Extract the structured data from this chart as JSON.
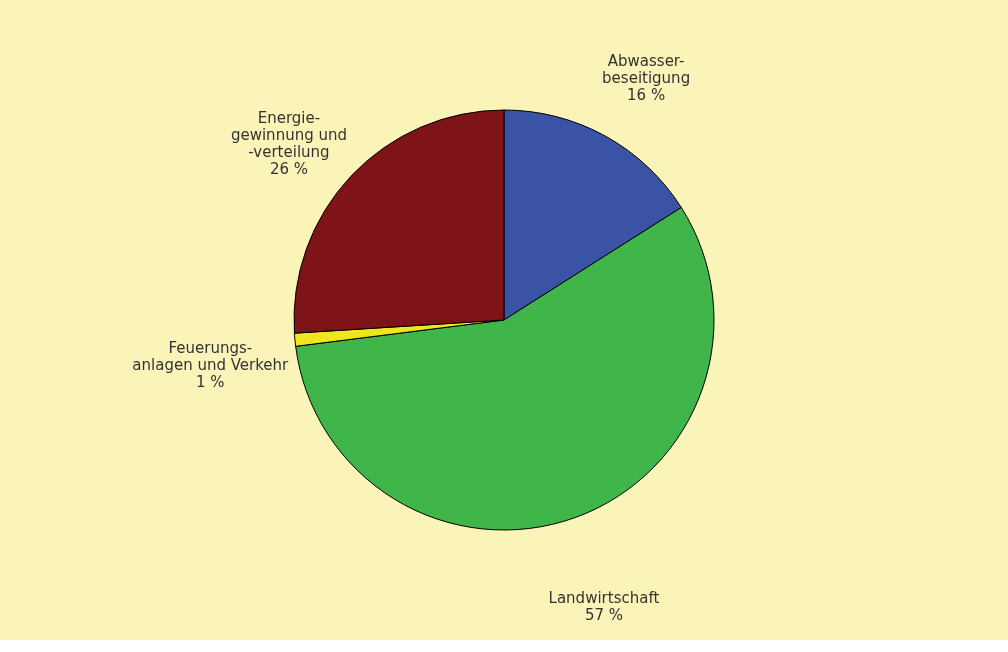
{
  "chart_data": {
    "type": "pie",
    "categories": [
      "Abwasser-\nbeseitigung",
      "Landwirtschaft",
      "Feuerungs-\nanlagen und Verkehr",
      "Energie-\ngewinnung und\n-verteilung"
    ],
    "values": [
      16,
      57,
      1,
      26
    ],
    "colors": [
      "#3a53a4",
      "#40b64a",
      "#f0e61e",
      "#7f1418"
    ],
    "value_labels": [
      "16 %",
      "57 %",
      "1 %",
      "26 %"
    ]
  }
}
